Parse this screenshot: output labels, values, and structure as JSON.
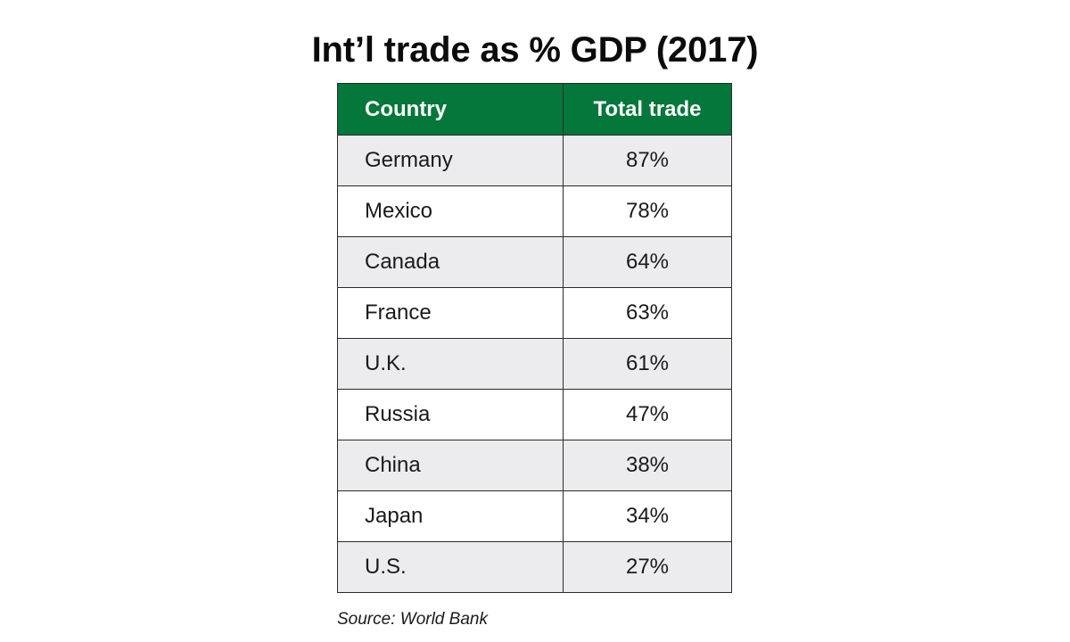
{
  "chart_data": {
    "type": "table",
    "title": "Int’l trade as % GDP (2017)",
    "columns": [
      "Country",
      "Total trade"
    ],
    "rows": [
      {
        "country": "Germany",
        "trade": "87%",
        "value": 87
      },
      {
        "country": "Mexico",
        "trade": "78%",
        "value": 78
      },
      {
        "country": "Canada",
        "trade": "64%",
        "value": 64
      },
      {
        "country": "France",
        "trade": "63%",
        "value": 63
      },
      {
        "country": "U.K.",
        "trade": "61%",
        "value": 61
      },
      {
        "country": "Russia",
        "trade": "47%",
        "value": 47
      },
      {
        "country": "China",
        "trade": "38%",
        "value": 38
      },
      {
        "country": "Japan",
        "trade": "34%",
        "value": 34
      },
      {
        "country": "U.S.",
        "trade": "27%",
        "value": 27
      }
    ],
    "source": "Source: World Bank",
    "colors": {
      "header_background": "#04773a",
      "header_text": "#ffffff",
      "striped_row": "#ececee",
      "plain_row": "#ffffff"
    }
  }
}
